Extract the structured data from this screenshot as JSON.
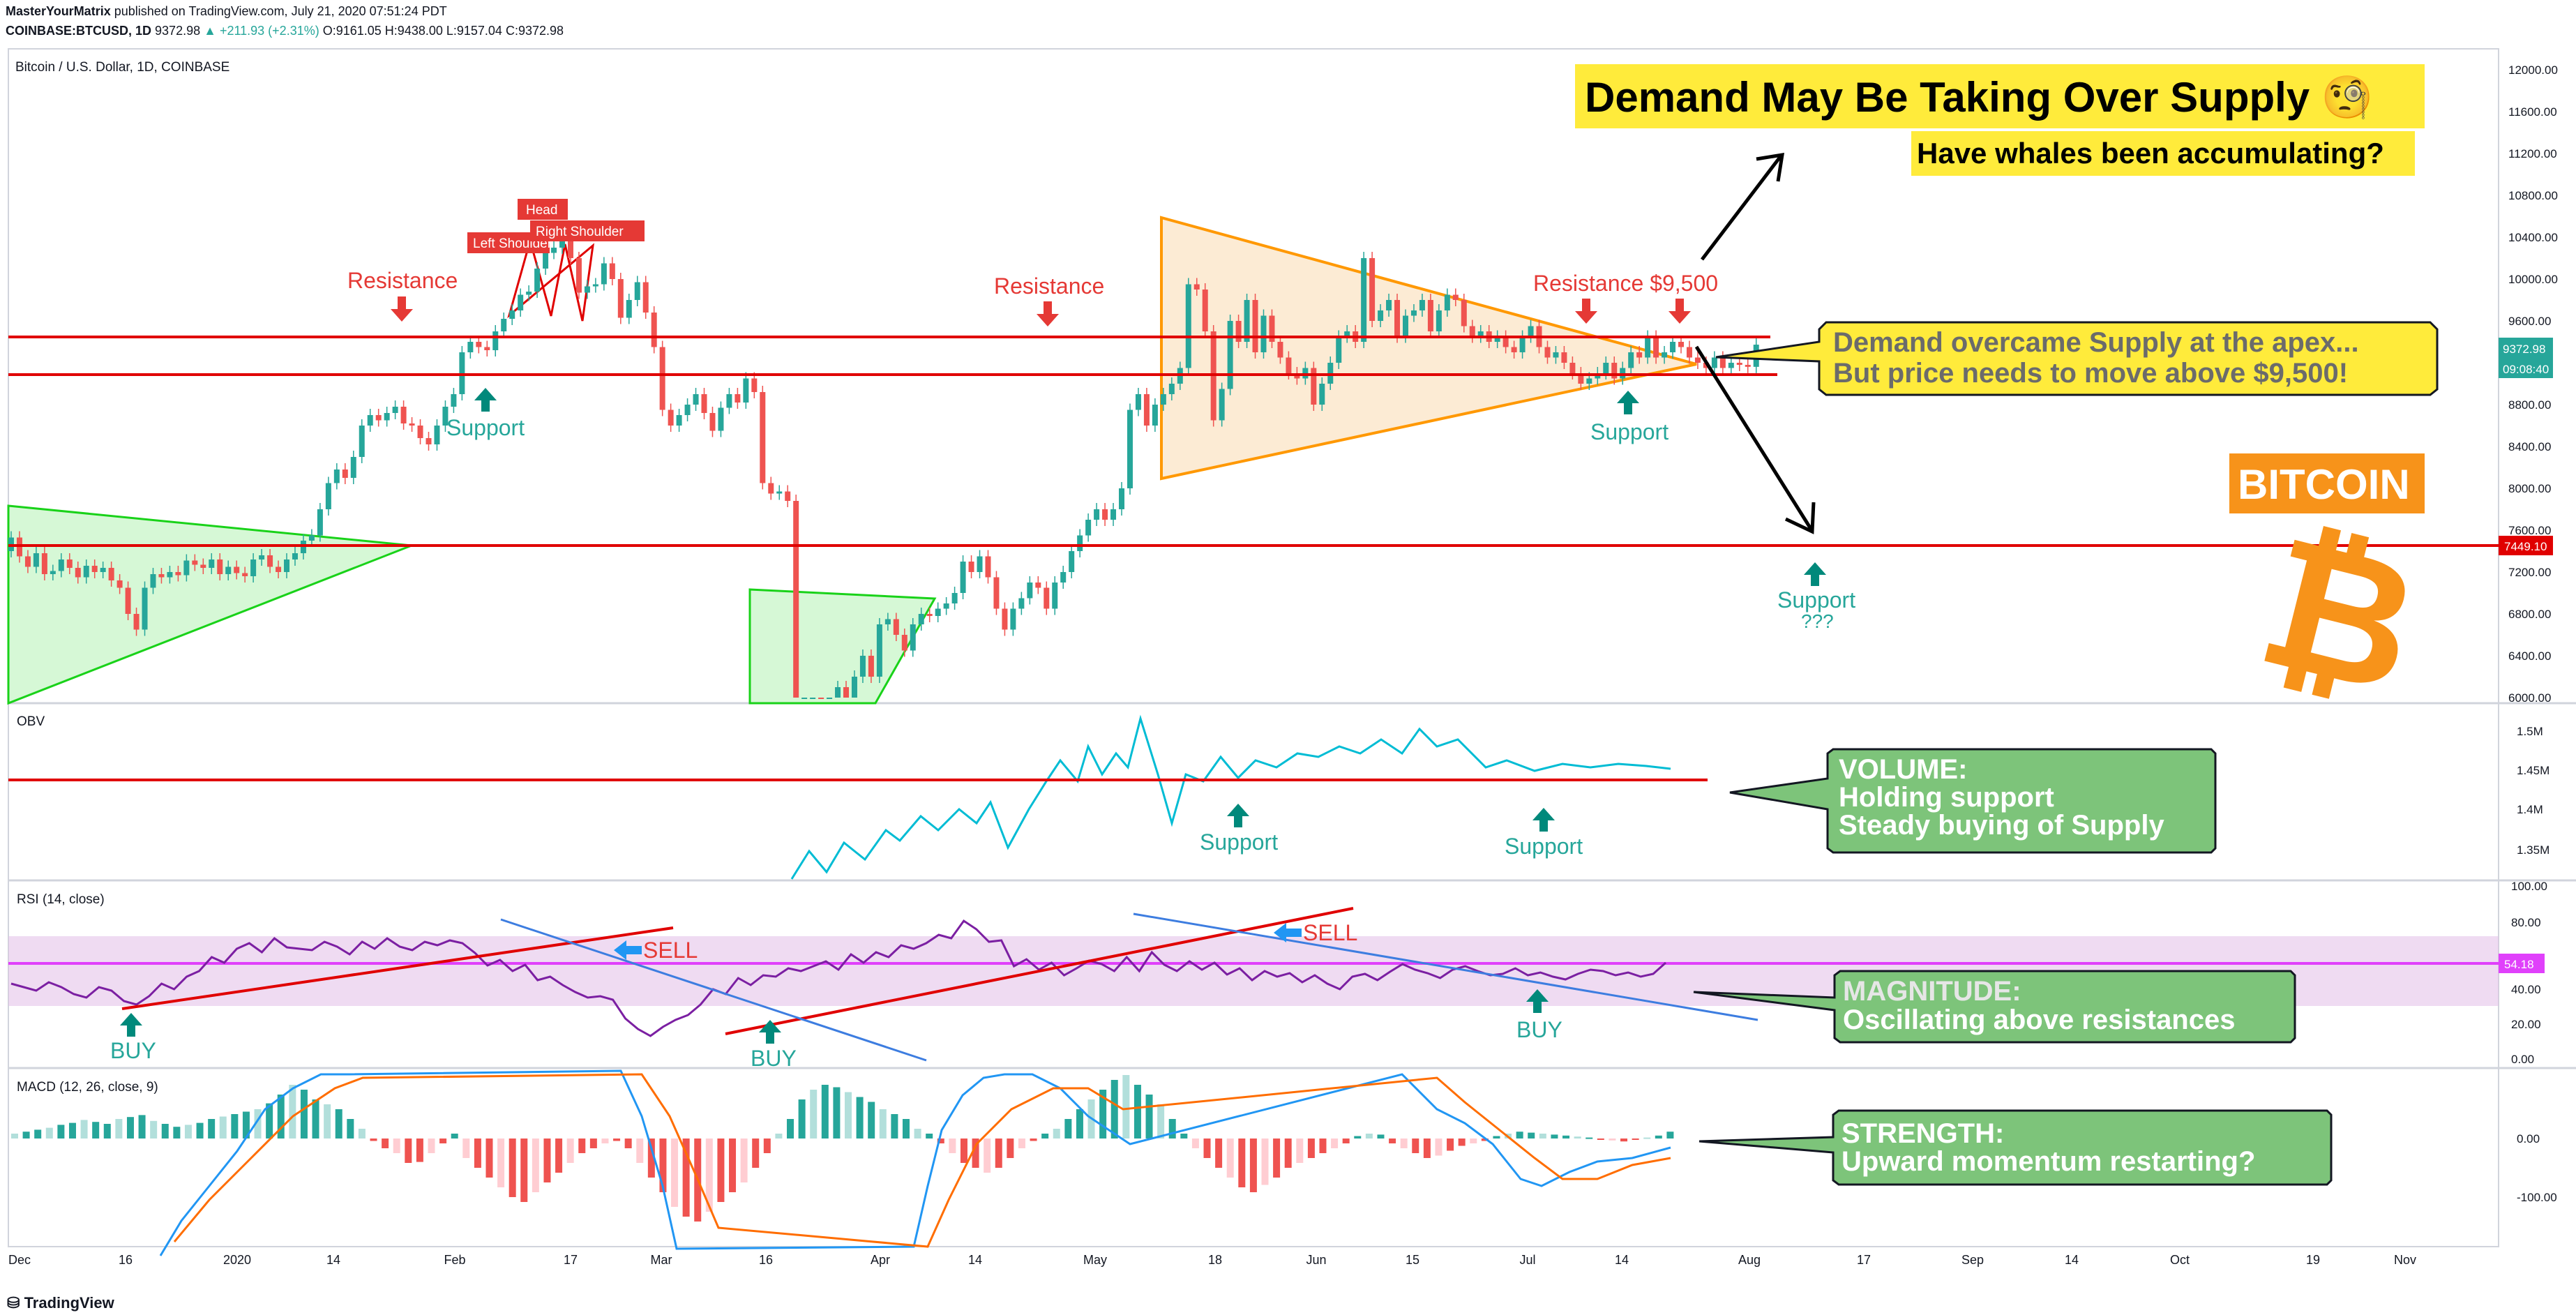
{
  "header": {
    "author": "MasterYourMatrix",
    "published": "published on TradingView.com, July 21, 2020 07:51:24 PDT",
    "symbol": "COINBASE:BTCUSD, 1D",
    "last": "9372.98",
    "change": "▲ +211.93 (+2.31%)",
    "ohlc": "O:9161.05 H:9438.00 L:9157.04 C:9372.98"
  },
  "footer": {
    "brand": "TradingView"
  },
  "chart_data": {
    "type": "candlestick",
    "title": "Bitcoin / U.S. Dollar, 1D, COINBASE",
    "price_axis": [
      "12000.00",
      "11600.00",
      "11200.00",
      "10800.00",
      "10400.00",
      "10000.00",
      "9600.00",
      "9200.00",
      "8800.00",
      "8400.00",
      "8000.00",
      "7600.00",
      "7200.00",
      "6800.00",
      "6400.00",
      "6000.00"
    ],
    "price_range": [
      6000,
      12000
    ],
    "price_labels": {
      "current": "9372.98",
      "countdown": "09:08:40",
      "line": "7449.10"
    },
    "x_labels": [
      "Dec",
      "16",
      "2020",
      "14",
      "Feb",
      "17",
      "Mar",
      "16",
      "Apr",
      "14",
      "May",
      "18",
      "Jun",
      "15",
      "Jul",
      "14",
      "Aug",
      "17",
      "Sep",
      "14",
      "Oct",
      "19",
      "Nov"
    ],
    "candles": [
      [
        7400,
        7530
      ],
      [
        7530,
        7350
      ],
      [
        7350,
        7250
      ],
      [
        7250,
        7380
      ],
      [
        7380,
        7180
      ],
      [
        7180,
        7210
      ],
      [
        7210,
        7320
      ],
      [
        7320,
        7240
      ],
      [
        7240,
        7150
      ],
      [
        7150,
        7260
      ],
      [
        7260,
        7200
      ],
      [
        7200,
        7240
      ],
      [
        7240,
        7120
      ],
      [
        7120,
        7050
      ],
      [
        7050,
        6800
      ],
      [
        6800,
        6650
      ],
      [
        6650,
        7050
      ],
      [
        7050,
        7180
      ],
      [
        7180,
        7150
      ],
      [
        7150,
        7200
      ],
      [
        7200,
        7170
      ],
      [
        7170,
        7310
      ],
      [
        7310,
        7270
      ],
      [
        7270,
        7240
      ],
      [
        7240,
        7320
      ],
      [
        7320,
        7180
      ],
      [
        7180,
        7250
      ],
      [
        7250,
        7190
      ],
      [
        7190,
        7160
      ],
      [
        7160,
        7320
      ],
      [
        7320,
        7360
      ],
      [
        7360,
        7250
      ],
      [
        7250,
        7200
      ],
      [
        7200,
        7320
      ],
      [
        7320,
        7380
      ],
      [
        7380,
        7500
      ],
      [
        7500,
        7550
      ],
      [
        7550,
        7800
      ],
      [
        7800,
        8050
      ],
      [
        8050,
        8180
      ],
      [
        8180,
        8100
      ],
      [
        8100,
        8300
      ],
      [
        8300,
        8600
      ],
      [
        8600,
        8700
      ],
      [
        8700,
        8650
      ],
      [
        8650,
        8720
      ],
      [
        8720,
        8780
      ],
      [
        8780,
        8620
      ],
      [
        8620,
        8600
      ],
      [
        8600,
        8480
      ],
      [
        8480,
        8420
      ],
      [
        8420,
        8600
      ],
      [
        8600,
        8780
      ],
      [
        8780,
        8900
      ],
      [
        8900,
        9300
      ],
      [
        9300,
        9400
      ],
      [
        9400,
        9350
      ],
      [
        9350,
        9320
      ],
      [
        9320,
        9500
      ],
      [
        9500,
        9620
      ],
      [
        9620,
        9700
      ],
      [
        9700,
        9850
      ],
      [
        9850,
        9880
      ],
      [
        9880,
        10100
      ],
      [
        10100,
        10250
      ],
      [
        10250,
        10300
      ],
      [
        10300,
        10400
      ],
      [
        10400,
        10200
      ],
      [
        10200,
        9870
      ],
      [
        9870,
        9930
      ],
      [
        9930,
        9950
      ],
      [
        9950,
        10150
      ],
      [
        10150,
        10000
      ],
      [
        10000,
        9630
      ],
      [
        9630,
        9800
      ],
      [
        9800,
        9970
      ],
      [
        9970,
        9680
      ],
      [
        9680,
        9350
      ],
      [
        9350,
        8750
      ],
      [
        8750,
        8600
      ],
      [
        8600,
        8700
      ],
      [
        8700,
        8800
      ],
      [
        8800,
        8900
      ],
      [
        8900,
        8720
      ],
      [
        8720,
        8550
      ],
      [
        8550,
        8770
      ],
      [
        8770,
        8900
      ],
      [
        8900,
        8820
      ],
      [
        8820,
        9050
      ],
      [
        9050,
        8920
      ],
      [
        8920,
        8050
      ],
      [
        8050,
        7950
      ],
      [
        7950,
        7970
      ],
      [
        7970,
        7880
      ],
      [
        7880,
        5000
      ],
      [
        5000,
        5300
      ],
      [
        5300,
        5500
      ],
      [
        5500,
        5400
      ],
      [
        5400,
        5800
      ],
      [
        5800,
        6100
      ],
      [
        6100,
        5850
      ],
      [
        5850,
        6200
      ],
      [
        6200,
        6400
      ],
      [
        6400,
        6200
      ],
      [
        6200,
        6700
      ],
      [
        6700,
        6750
      ],
      [
        6750,
        6600
      ],
      [
        6600,
        6450
      ],
      [
        6450,
        6700
      ],
      [
        6700,
        6800
      ],
      [
        6800,
        6780
      ],
      [
        6780,
        6850
      ],
      [
        6850,
        6900
      ],
      [
        6900,
        7000
      ],
      [
        7000,
        7300
      ],
      [
        7300,
        7200
      ],
      [
        7200,
        7350
      ],
      [
        7350,
        7150
      ],
      [
        7150,
        6850
      ],
      [
        6850,
        6650
      ],
      [
        6650,
        6850
      ],
      [
        6850,
        6950
      ],
      [
        6950,
        7100
      ],
      [
        7100,
        7050
      ],
      [
        7050,
        6850
      ],
      [
        6850,
        7100
      ],
      [
        7100,
        7200
      ],
      [
        7200,
        7400
      ],
      [
        7400,
        7550
      ],
      [
        7550,
        7700
      ],
      [
        7700,
        7800
      ],
      [
        7800,
        7700
      ],
      [
        7700,
        7800
      ],
      [
        7800,
        8000
      ],
      [
        8000,
        8750
      ],
      [
        8750,
        8900
      ],
      [
        8900,
        8600
      ],
      [
        8600,
        8800
      ],
      [
        8800,
        8900
      ],
      [
        8900,
        9000
      ],
      [
        9000,
        9150
      ],
      [
        9150,
        9950
      ],
      [
        9950,
        9900
      ],
      [
        9900,
        9500
      ],
      [
        9500,
        8650
      ],
      [
        8650,
        8950
      ],
      [
        8950,
        9600
      ],
      [
        9600,
        9400
      ],
      [
        9400,
        9800
      ],
      [
        9800,
        9300
      ],
      [
        9300,
        9650
      ],
      [
        9650,
        9400
      ],
      [
        9400,
        9250
      ],
      [
        9250,
        9100
      ],
      [
        9100,
        9050
      ],
      [
        9050,
        9150
      ],
      [
        9150,
        8800
      ],
      [
        8800,
        9000
      ],
      [
        9000,
        9200
      ],
      [
        9200,
        9450
      ],
      [
        9450,
        9500
      ],
      [
        9500,
        9400
      ],
      [
        9400,
        10200
      ],
      [
        10200,
        9600
      ],
      [
        9600,
        9700
      ],
      [
        9700,
        9800
      ],
      [
        9800,
        9450
      ],
      [
        9450,
        9650
      ],
      [
        9650,
        9700
      ],
      [
        9700,
        9800
      ],
      [
        9800,
        9500
      ],
      [
        9500,
        9700
      ],
      [
        9700,
        9850
      ],
      [
        9850,
        9800
      ],
      [
        9800,
        9550
      ],
      [
        9550,
        9450
      ],
      [
        9450,
        9500
      ],
      [
        9500,
        9400
      ],
      [
        9400,
        9450
      ],
      [
        9450,
        9350
      ],
      [
        9350,
        9300
      ],
      [
        9300,
        9450
      ],
      [
        9450,
        9550
      ],
      [
        9550,
        9350
      ],
      [
        9350,
        9250
      ],
      [
        9250,
        9300
      ],
      [
        9300,
        9200
      ],
      [
        9200,
        9100
      ],
      [
        9100,
        9000
      ],
      [
        9000,
        9050
      ],
      [
        9050,
        9100
      ],
      [
        9100,
        9200
      ],
      [
        9200,
        9050
      ],
      [
        9050,
        9150
      ],
      [
        9150,
        9300
      ],
      [
        9300,
        9250
      ],
      [
        9250,
        9450
      ],
      [
        9450,
        9250
      ],
      [
        9250,
        9300
      ],
      [
        9300,
        9400
      ],
      [
        9400,
        9350
      ],
      [
        9350,
        9250
      ],
      [
        9250,
        9200
      ],
      [
        9200,
        9150
      ],
      [
        9150,
        9250
      ],
      [
        9250,
        9150
      ],
      [
        9150,
        9200
      ],
      [
        9200,
        9180
      ],
      [
        9180,
        9161
      ],
      [
        9161,
        9373
      ]
    ],
    "indicators": [
      {
        "name": "OBV",
        "axis": [
          "1.5M",
          "1.45M",
          "1.4M",
          "1.35M"
        ]
      },
      {
        "name": "RSI (14, close)",
        "axis": [
          "100.00",
          "80.00",
          "54.18",
          "40.00",
          "20.00",
          "0.00"
        ],
        "value": "54.18"
      },
      {
        "name": "MACD (12, 26, close, 9)",
        "axis": [
          "0.00",
          "-100.00"
        ]
      }
    ]
  },
  "annotations": {
    "headline": "Demand May Be Taking Over Supply 🧐",
    "subhead": "Have whales been accumulating?",
    "apex_line1": "Demand overcame Supply at the apex...",
    "apex_line2": "But price needs to move above $9,500!",
    "bitcoin_label": "BITCOIN",
    "bitcoin_symbol": "₿",
    "resistance": "Resistance",
    "resistance_9500": "Resistance $9,500",
    "support": "Support",
    "support_q": "???",
    "head": "Head",
    "left_shoulder": "Left Shoulder",
    "right_shoulder": "Right Shoulder",
    "sell": "SELL",
    "buy": "BUY",
    "volume_title": "VOLUME:",
    "volume_l1": "Holding support",
    "volume_l2": "Steady buying of Supply",
    "magnitude_title": "MAGNITUDE:",
    "magnitude_l1": "Oscillating above resistances",
    "strength_title": "STRENGTH:",
    "strength_l1": "Upward momentum restarting?"
  },
  "colors": {
    "up": "#26a69a",
    "down": "#ef5350",
    "resistance": "#e00000",
    "triangle": "#ff9800",
    "green_tri": "#00e000",
    "bitcoin": "#f7931a",
    "callout": "#ffeb3b",
    "box_green": "#7dc47a",
    "rsi": "#7b1fa2"
  }
}
